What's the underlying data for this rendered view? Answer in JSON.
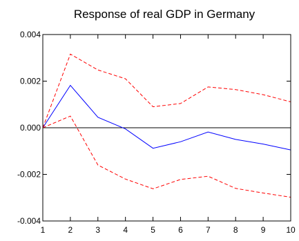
{
  "chart_data": {
    "type": "line",
    "title": "Response of real GDP in Germany",
    "xlabel": "",
    "ylabel": "",
    "x": [
      1,
      2,
      3,
      4,
      5,
      6,
      7,
      8,
      9,
      10
    ],
    "xlim": [
      1,
      10
    ],
    "ylim": [
      -0.004,
      0.004
    ],
    "x_tick_labels": [
      "1",
      "2",
      "3",
      "4",
      "5",
      "6",
      "7",
      "8",
      "9",
      "10"
    ],
    "y_ticks": [
      -0.004,
      -0.002,
      0.0,
      0.002,
      0.004
    ],
    "y_tick_labels": [
      "-0.004",
      "-0.002",
      "0.000",
      "0.002",
      "0.004"
    ],
    "zero_line": 0.0,
    "grid": false,
    "series": [
      {
        "values": [
          0.0,
          0.00182,
          0.00045,
          -5e-05,
          -0.00088,
          -0.0006,
          -0.00018,
          -0.0005,
          -0.0007,
          -0.00095
        ],
        "color": "#0000ff",
        "style": "solid"
      },
      {
        "values": [
          0.0,
          0.00316,
          0.00248,
          0.0021,
          0.0009,
          0.00104,
          0.00175,
          0.00164,
          0.00142,
          0.00111
        ],
        "color": "#ff0000",
        "style": "dashed"
      },
      {
        "values": [
          0.0,
          0.0005,
          -0.0016,
          -0.0022,
          -0.00262,
          -0.00222,
          -0.00208,
          -0.0026,
          -0.0028,
          -0.00298
        ],
        "color": "#ff0000",
        "style": "dashed"
      }
    ]
  }
}
